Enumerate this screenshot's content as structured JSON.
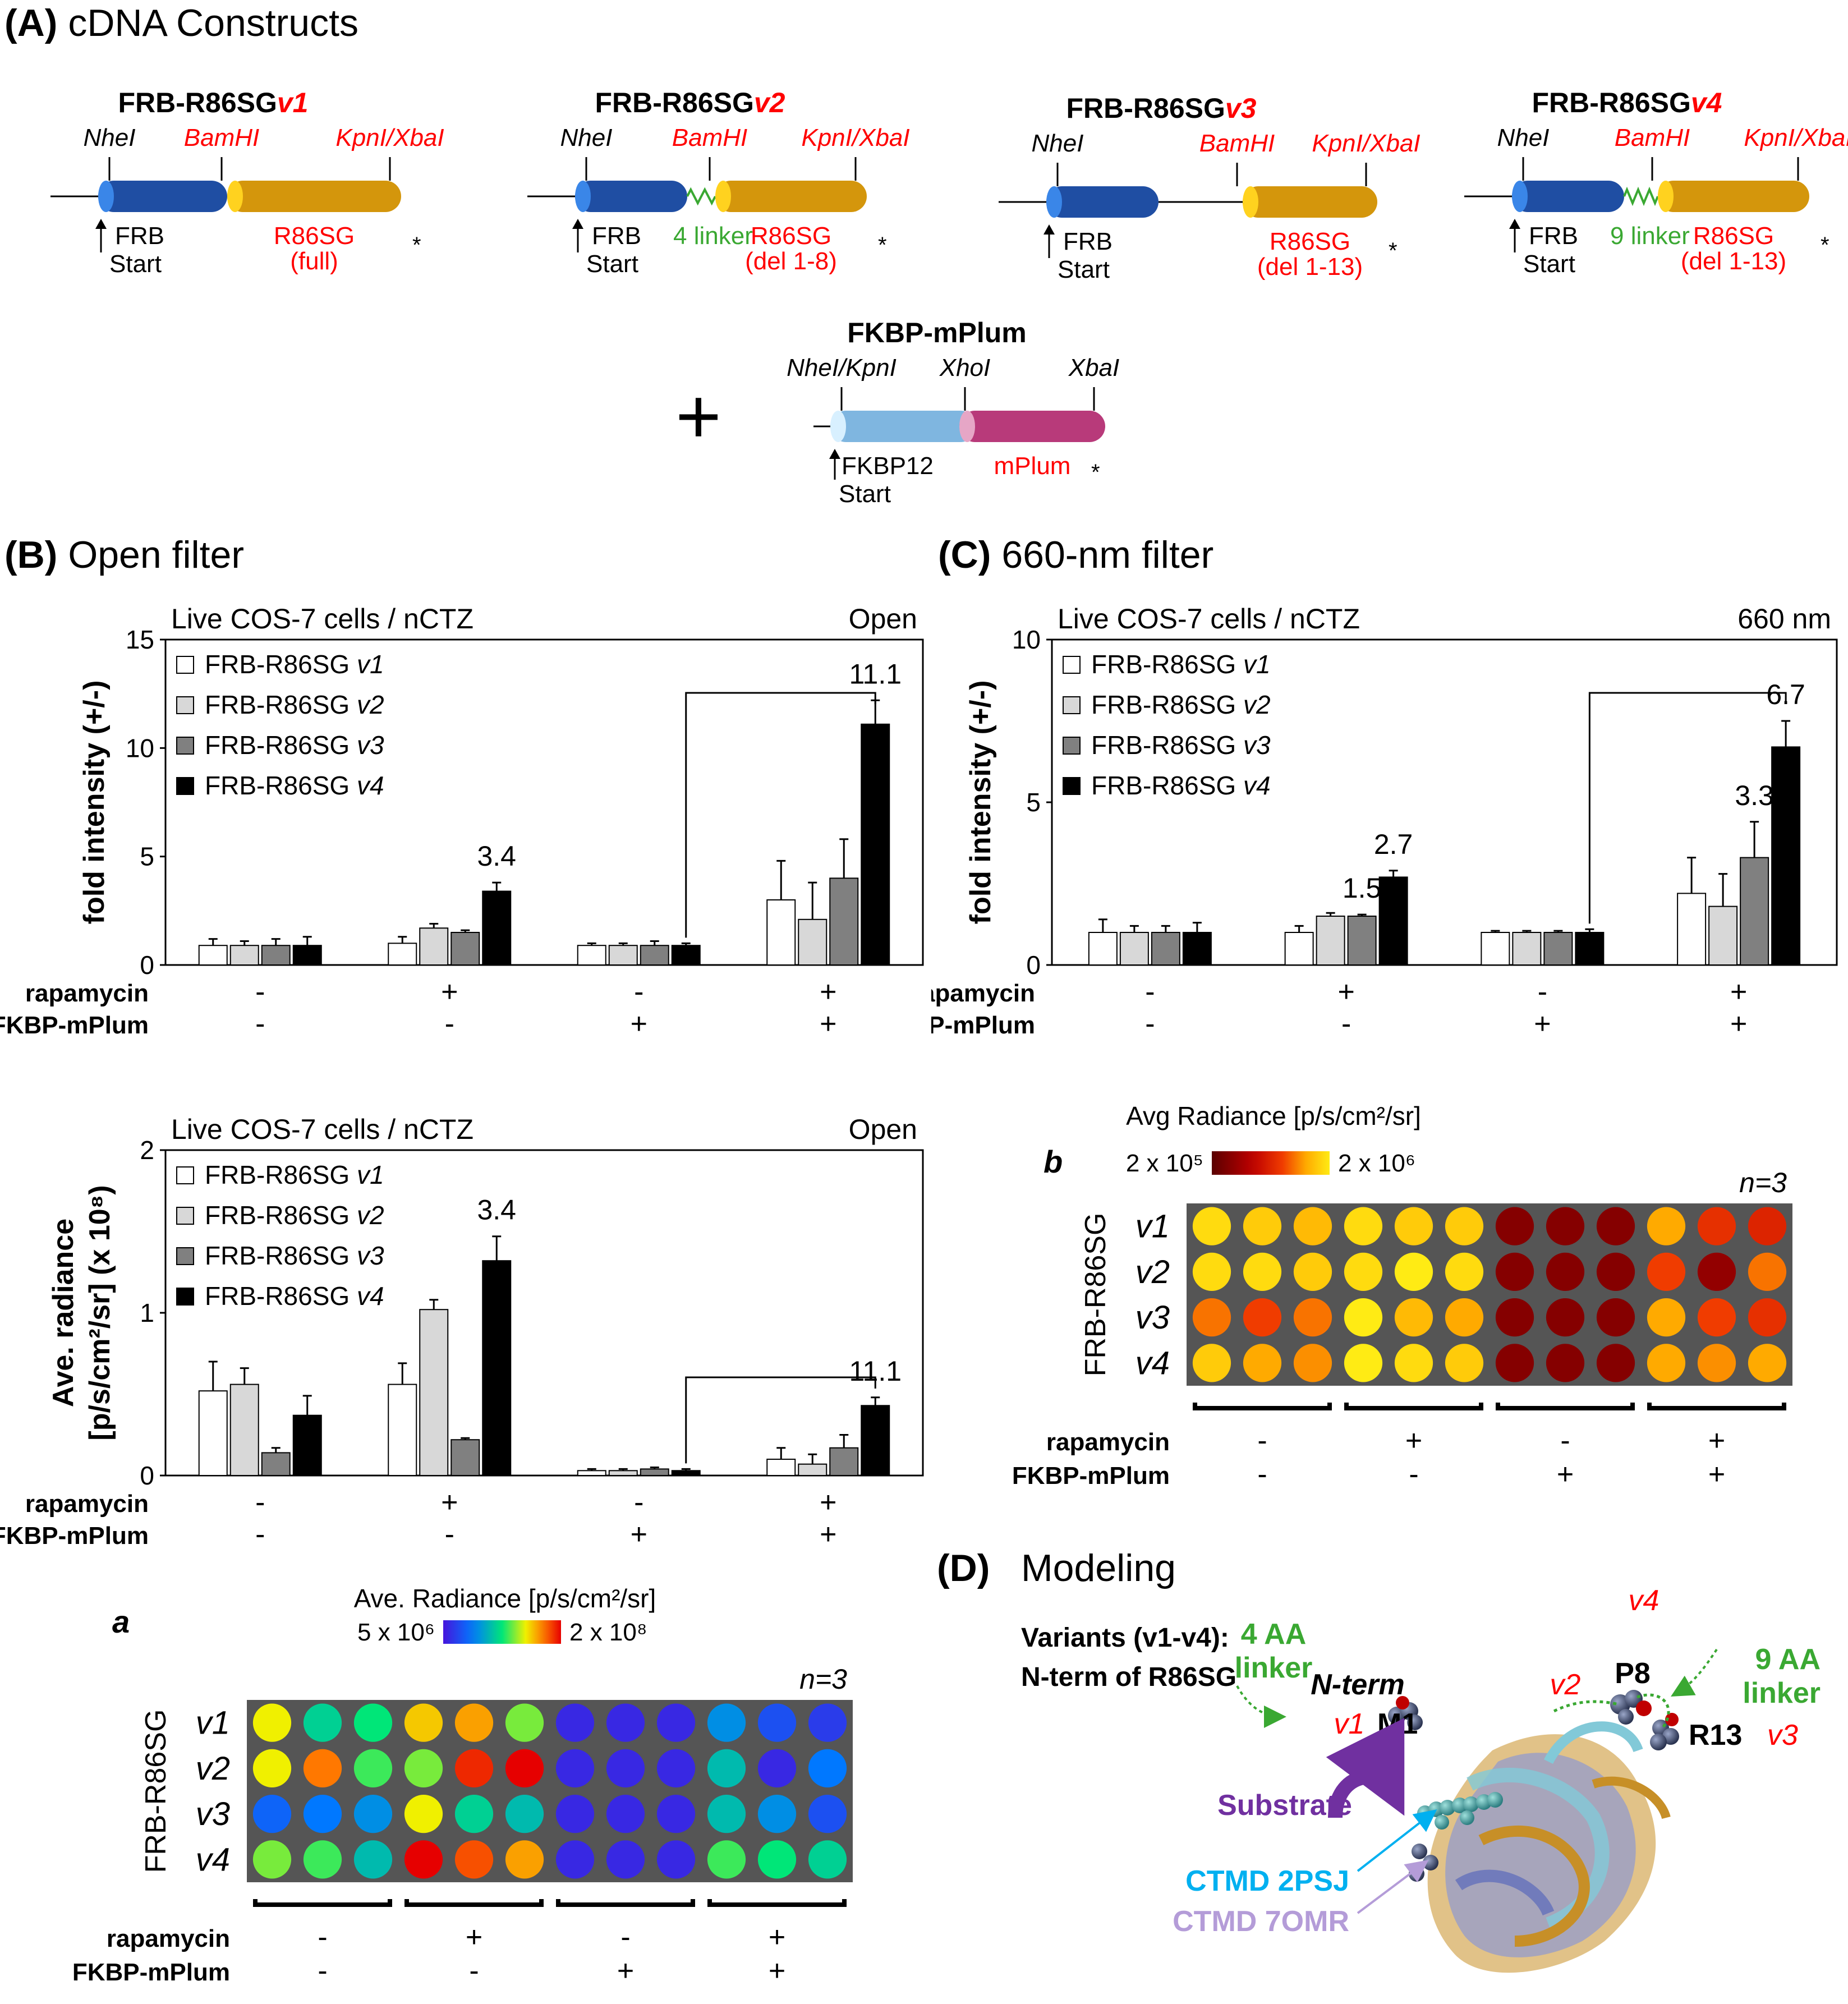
{
  "panelA": {
    "label": "(A)",
    "title": "cDNA Constructs",
    "constructs": [
      {
        "name_prefix": "FRB-R86SG",
        "variant": "v1",
        "site1": "NheI",
        "site2": "BamHI",
        "site3": "KpnI/XbaI",
        "left_label": "FRB",
        "start": "Start",
        "linker": "",
        "right_label": "R86SG",
        "right_sub": "(full)"
      },
      {
        "name_prefix": "FRB-R86SG",
        "variant": "v2",
        "site1": "NheI",
        "site2": "BamHI",
        "site3": "KpnI/XbaI",
        "left_label": "FRB",
        "start": "Start",
        "linker": "4 linker",
        "right_label": "R86SG",
        "right_sub": "(del 1-8)"
      },
      {
        "name_prefix": "FRB-R86SG",
        "variant": "v3",
        "site1": "NheI",
        "site2": "BamHI",
        "site3": "KpnI/XbaI",
        "left_label": "FRB",
        "start": "Start",
        "linker": "",
        "right_label": "R86SG",
        "right_sub": "(del 1-13)"
      },
      {
        "name_prefix": "FRB-R86SG",
        "variant": "v4",
        "site1": "NheI",
        "site2": "BamHI",
        "site3": "KpnI/XbaI",
        "left_label": "FRB",
        "start": "Start",
        "linker": "9 linker",
        "right_label": "R86SG",
        "right_sub": "(del 1-13)"
      }
    ],
    "fkbp": {
      "name": "FKBP-mPlum",
      "site1": "NheI/KpnI",
      "site2": "XhoI",
      "site3": "XbaI",
      "left_label": "FKBP12",
      "start": "Start",
      "right_label": "mPlum"
    },
    "plus": "+",
    "star": "*"
  },
  "panelB": {
    "label": "(B)",
    "title": "Open filter"
  },
  "panelC": {
    "label": "(C)",
    "title": "660-nm filter"
  },
  "conditions": {
    "rapamycin_label": "rapamycin",
    "fkbp_label": "FKBP-mPlum",
    "rapamycin": [
      "-",
      "+",
      "-",
      "+"
    ],
    "fkbp": [
      "-",
      "-",
      "+",
      "+"
    ]
  },
  "legend_prefix": "FRB-R86SG",
  "series_names": [
    "v1",
    "v2",
    "v3",
    "v4"
  ],
  "chart_data": [
    {
      "id": "B-top",
      "type": "bar",
      "title": "Live COS-7 cells / nCTZ",
      "corner": "Open",
      "ylabel": "fold intensity (+/-)",
      "ylim": [
        0,
        15
      ],
      "yticks": [
        "0",
        "5",
        "10",
        "15"
      ],
      "categories": [
        "-/-",
        "+/-",
        "-/+",
        "+/+"
      ],
      "series": [
        {
          "name": "FRB-R86SG v1",
          "values": [
            0.9,
            1.0,
            0.9,
            3.0
          ],
          "errors": [
            0.3,
            0.3,
            0.1,
            1.8
          ]
        },
        {
          "name": "FRB-R86SG v2",
          "values": [
            0.9,
            1.7,
            0.9,
            2.1
          ],
          "errors": [
            0.2,
            0.2,
            0.1,
            1.7
          ]
        },
        {
          "name": "FRB-R86SG v3",
          "values": [
            0.9,
            1.5,
            0.9,
            4.0
          ],
          "errors": [
            0.3,
            0.1,
            0.2,
            1.8
          ]
        },
        {
          "name": "FRB-R86SG v4",
          "values": [
            0.9,
            3.4,
            0.9,
            11.1
          ],
          "errors": [
            0.4,
            0.4,
            0.1,
            1.1
          ]
        }
      ],
      "annotations": [
        "3.4",
        "11.1"
      ]
    },
    {
      "id": "C",
      "type": "bar",
      "title": "Live COS-7 cells / nCTZ",
      "corner": "660 nm",
      "ylabel": "fold intensity (+/-)",
      "ylim": [
        0,
        10
      ],
      "yticks": [
        "0",
        "5",
        "10"
      ],
      "categories": [
        "-/-",
        "+/-",
        "-/+",
        "+/+"
      ],
      "series": [
        {
          "name": "FRB-R86SG v1",
          "values": [
            1.0,
            1.0,
            1.0,
            2.2
          ],
          "errors": [
            0.4,
            0.2,
            0.05,
            1.1
          ]
        },
        {
          "name": "FRB-R86SG v2",
          "values": [
            1.0,
            1.5,
            1.0,
            1.8
          ],
          "errors": [
            0.2,
            0.1,
            0.05,
            1.0
          ]
        },
        {
          "name": "FRB-R86SG v3",
          "values": [
            1.0,
            1.5,
            1.0,
            3.3
          ],
          "errors": [
            0.2,
            0.05,
            0.05,
            1.1
          ]
        },
        {
          "name": "FRB-R86SG v4",
          "values": [
            1.0,
            2.7,
            1.0,
            6.7
          ],
          "errors": [
            0.3,
            0.2,
            0.1,
            0.8
          ]
        }
      ],
      "annotations": [
        "1.5",
        "2.7",
        "3.3",
        "6.7"
      ]
    },
    {
      "id": "B-bottom",
      "type": "bar",
      "title": "Live COS-7 cells / nCTZ",
      "corner": "Open",
      "ylabel_line1": "Ave. radiance",
      "ylabel_line2": "[p/s/cm²/sr] (x 10⁸)",
      "ylim": [
        0,
        2
      ],
      "yticks": [
        "0",
        "1",
        "2"
      ],
      "categories": [
        "-/-",
        "+/-",
        "-/+",
        "+/+"
      ],
      "series": [
        {
          "name": "FRB-R86SG v1",
          "values": [
            0.52,
            0.56,
            0.03,
            0.1
          ],
          "errors": [
            0.18,
            0.13,
            0.01,
            0.07
          ]
        },
        {
          "name": "FRB-R86SG v2",
          "values": [
            0.56,
            1.02,
            0.03,
            0.07
          ],
          "errors": [
            0.1,
            0.06,
            0.01,
            0.06
          ]
        },
        {
          "name": "FRB-R86SG v3",
          "values": [
            0.14,
            0.22,
            0.04,
            0.17
          ],
          "errors": [
            0.03,
            0.01,
            0.01,
            0.08
          ]
        },
        {
          "name": "FRB-R86SG v4",
          "values": [
            0.37,
            1.32,
            0.03,
            0.43
          ],
          "errors": [
            0.12,
            0.15,
            0.01,
            0.05
          ]
        }
      ],
      "annotations": [
        "3.4",
        "11.1"
      ]
    }
  ],
  "heatmapA": {
    "label": "a",
    "scale_title": "Ave. Radiance [p/s/cm²/sr]",
    "scale_min": "5 x 10⁶",
    "scale_max": "2 x 10⁸",
    "n": "n=3",
    "row_title": "FRB-R86SG",
    "rows": [
      "v1",
      "v2",
      "v3",
      "v4"
    ],
    "intensity": [
      [
        0.7,
        0.45,
        0.5,
        0.75,
        0.8,
        0.6,
        0.05,
        0.05,
        0.05,
        0.3,
        0.15,
        0.1
      ],
      [
        0.7,
        0.85,
        0.55,
        0.6,
        0.95,
        1.0,
        0.05,
        0.05,
        0.05,
        0.4,
        0.05,
        0.25
      ],
      [
        0.2,
        0.25,
        0.3,
        0.7,
        0.45,
        0.4,
        0.05,
        0.05,
        0.05,
        0.4,
        0.3,
        0.15
      ],
      [
        0.6,
        0.55,
        0.4,
        1.0,
        0.9,
        0.8,
        0.05,
        0.05,
        0.05,
        0.55,
        0.5,
        0.45
      ]
    ]
  },
  "heatmapB": {
    "label": "b",
    "scale_title": "Avg Radiance [p/s/cm²/sr]",
    "scale_min": "2 x 10⁵",
    "scale_max": "2 x 10⁶",
    "n": "n=3",
    "row_title": "FRB-R86SG",
    "rows": [
      "v1",
      "v2",
      "v3",
      "v4"
    ],
    "intensity": [
      [
        0.95,
        0.9,
        0.85,
        0.95,
        0.9,
        0.9,
        0.15,
        0.15,
        0.15,
        0.8,
        0.55,
        0.5
      ],
      [
        0.95,
        0.95,
        0.9,
        0.95,
        1.0,
        0.95,
        0.15,
        0.15,
        0.15,
        0.6,
        0.2,
        0.7
      ],
      [
        0.7,
        0.6,
        0.7,
        1.0,
        0.85,
        0.8,
        0.15,
        0.15,
        0.15,
        0.8,
        0.6,
        0.55
      ],
      [
        0.9,
        0.8,
        0.75,
        1.0,
        0.95,
        0.9,
        0.15,
        0.15,
        0.15,
        0.8,
        0.75,
        0.8
      ]
    ]
  },
  "panelD": {
    "label": "(D)",
    "title": "Modeling",
    "variants_line1": "Variants (v1-v4):",
    "variants_line2": "N-term of R86SG",
    "linker4_1": "4 AA",
    "linker4_2": "linker",
    "linker9_1": "9 AA",
    "linker9_2": "linker",
    "nterm": "N-term",
    "v1": "v1",
    "m1": "M1",
    "v2": "v2",
    "p8": "P8",
    "v4": "v4",
    "r13": "R13",
    "v3": "v3",
    "substrate": "Substrate",
    "ctmd1": "CTMD 2PSJ",
    "ctmd2": "CTMD 7OMR"
  },
  "colors": {
    "v1": "#ffffff",
    "v2": "#d8d8d8",
    "v3": "#808080",
    "v4": "#000000",
    "red": "#ff0000",
    "green": "#3aa832",
    "frb": "#1f4ea3",
    "r86sg": "#d4960c",
    "fkbp": "#7fb6e0",
    "mplum": "#b83a7a",
    "substrate": "#7030a0",
    "ctmd1": "#00b0f0",
    "ctmd2": "#b49cd8"
  }
}
